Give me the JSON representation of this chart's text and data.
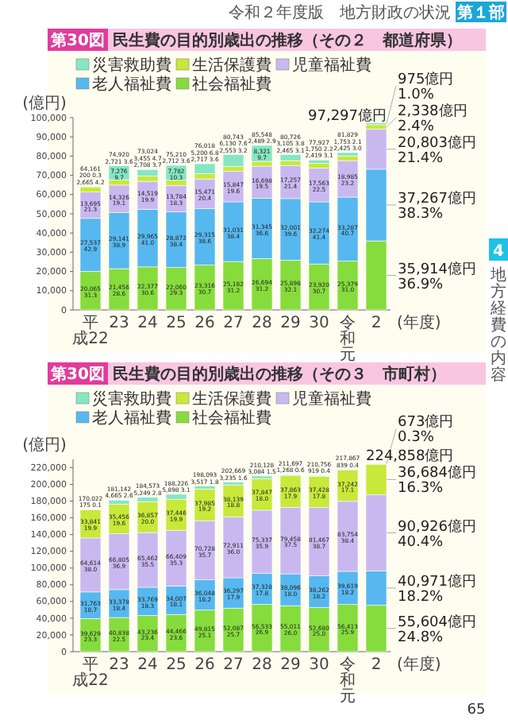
{
  "chart_data": [
    {
      "type": "bar",
      "stacked": true,
      "title": "民生費の目的別歳出の推移（その２　都道府県）",
      "ylabel": "(億円)",
      "xlabel": "(年度)",
      "legend": "top left",
      "annotations": [
        "第30図",
        "令和２年度版　地方財政の状況",
        "第１部",
        "4",
        "地方経費の内容"
      ],
      "categories": [
        "平成22",
        "23",
        "24",
        "25",
        "26",
        "27",
        "28",
        "29",
        "30",
        "令和元",
        "2"
      ],
      "ylim": [
        0,
        100000
      ],
      "yticks": [
        {
          "value": 0,
          "label": "0"
        },
        {
          "value": 10000,
          "label": "10,000"
        },
        {
          "value": 20000,
          "label": "20,000"
        },
        {
          "value": 30000,
          "label": "30,000"
        },
        {
          "value": 40000,
          "label": "40,000"
        },
        {
          "value": 50000,
          "label": "50,000"
        },
        {
          "value": 60000,
          "label": "60,000"
        },
        {
          "value": 70000,
          "label": "70,000"
        },
        {
          "value": 80000,
          "label": "80,000"
        },
        {
          "value": 90000,
          "label": "90,000"
        },
        {
          "value": 100000,
          "label": "100,000"
        }
      ],
      "totals": [
        "64,161",
        "74,920",
        "73,024",
        "75,210",
        "76,018",
        "80,743",
        "85,548",
        "80,726",
        "77,927",
        "81,829",
        "97,297億円"
      ],
      "series": [
        {
          "name": "社会福祉費",
          "color": "#86dc3c",
          "values": [
            20065,
            21456,
            22377,
            22060,
            23316,
            25182,
            26694,
            25898,
            23920,
            25379,
            35914
          ],
          "value_labels": [
            "20,065\n31.3",
            "21,456\n28.6",
            "22,377\n30.6",
            "22,060\n29.3",
            "23,316\n30.7",
            "25,182\n31.2",
            "26,694\n31.2",
            "25,898\n32.1",
            "23,920\n30.7",
            "25,379\n31.0",
            "35,914億円\n36.9%"
          ]
        },
        {
          "name": "老人福祉費",
          "color": "#56b8ef",
          "values": [
            27537,
            29141,
            29965,
            28872,
            29315,
            31031,
            31345,
            32001,
            32274,
            33287,
            37267
          ],
          "value_labels": [
            "27,537\n42.9",
            "29,141\n38.9",
            "29,965\n41.0",
            "28,872\n38.4",
            "29,315\n38.6",
            "31,031\n38.4",
            "31,345\n36.6",
            "32,001\n39.6",
            "32,274\n41.4",
            "33,287\n40.7",
            "37,267億円\n38.3%"
          ]
        },
        {
          "name": "児童福祉費",
          "color": "#c9b8f0",
          "values": [
            13695,
            14326,
            14519,
            13784,
            15471,
            15847,
            16698,
            17257,
            17563,
            18985,
            20803
          ],
          "value_labels": [
            "13,695\n21.3",
            "14,326\n19.1",
            "14,519\n19.9",
            "13,784\n18.3",
            "15,471\n20.4",
            "15,847\n19.6",
            "16,698\n19.5",
            "17,257\n21.4",
            "17,563\n22.5",
            "18,985\n23.2",
            "20,803億円\n21.4%"
          ]
        },
        {
          "name": "生活保護費",
          "color": "#c8e83a",
          "values": [
            2665,
            2721,
            2708,
            2712,
            2717,
            2553,
            2489,
            2465,
            2419,
            2425,
            2338
          ],
          "value_labels": [
            "2,665\n4.2",
            "2,721\n3.6",
            "2,708\n3.7",
            "2,712\n3.6",
            "2,717\n3.6",
            "2,553\n3.2",
            "2,489\n2.9",
            "2,465\n3.1",
            "2,419\n3.1",
            "2,425\n3.0",
            "2,338億円\n2.4%"
          ]
        },
        {
          "name": "災害救助費",
          "color": "#86e6c4",
          "values": [
            200,
            7276,
            3455,
            7782,
            5200,
            6130,
            8321,
            3105,
            1750,
            1753,
            975
          ],
          "value_labels": [
            "200\n0.3",
            "7,276\n9.7",
            "3,455\n4.7",
            "7,782\n10.3",
            "5,200\n6.8",
            "6,130\n7.6",
            "8,321\n9.7",
            "3,105\n3.8",
            "1,750\n2.2",
            "1,753\n2.1",
            "975億円\n1.0%"
          ]
        }
      ]
    },
    {
      "type": "bar",
      "stacked": true,
      "title": "民生費の目的別歳出の推移（その３　市町村）",
      "ylabel": "(億円)",
      "xlabel": "(年度)",
      "legend": "top left",
      "annotations": [
        "第30図",
        "65"
      ],
      "categories": [
        "平成22",
        "23",
        "24",
        "25",
        "26",
        "27",
        "28",
        "29",
        "30",
        "令和元",
        "2"
      ],
      "ylim": [
        0,
        230000
      ],
      "yticks": [
        {
          "value": 0,
          "label": "0"
        },
        {
          "value": 20000,
          "label": "20,000"
        },
        {
          "value": 40000,
          "label": "40,000"
        },
        {
          "value": 60000,
          "label": "60,000"
        },
        {
          "value": 80000,
          "label": "80,000"
        },
        {
          "value": 100000,
          "label": "100,000"
        },
        {
          "value": 120000,
          "label": "120,000"
        },
        {
          "value": 140000,
          "label": "140,000"
        },
        {
          "value": 160000,
          "label": "160,000"
        },
        {
          "value": 180000,
          "label": "180,000"
        },
        {
          "value": 200000,
          "label": "200,000"
        },
        {
          "value": 220000,
          "label": "220,000"
        }
      ],
      "totals": [
        "170,022",
        "181,142",
        "184,573",
        "188,226",
        "198,093",
        "202,669",
        "210,128",
        "211,697",
        "210,756",
        "217,867",
        "224,858億円"
      ],
      "series": [
        {
          "name": "社会福祉費",
          "color": "#86dc3c",
          "values": [
            39629,
            40838,
            43236,
            44466,
            49815,
            52087,
            56533,
            55011,
            52680,
            56413,
            55604
          ],
          "value_labels": [
            "39,629\n23.3",
            "40,838\n22.5",
            "43,236\n23.4",
            "44,466\n23.6",
            "49,815\n25.1",
            "52,087\n25.7",
            "56,533\n26.9",
            "55,011\n26.0",
            "52,680\n25.0",
            "56,413\n25.9",
            "55,604億円\n24.8%"
          ]
        },
        {
          "name": "老人福祉費",
          "color": "#56b8ef",
          "values": [
            31763,
            33378,
            33769,
            34007,
            36048,
            36297,
            37328,
            38096,
            38262,
            39619,
            40971
          ],
          "value_labels": [
            "31,763\n18.7",
            "33,378\n18.4",
            "33,769\n18.3",
            "34,007\n18.1",
            "36,048\n18.2",
            "36,297\n17.9",
            "37,328\n17.8",
            "38,096\n18.0",
            "38,262\n18.2",
            "39,619\n18.2",
            "40,971億円\n18.2%"
          ]
        },
        {
          "name": "児童福祉費",
          "color": "#c9b8f0",
          "values": [
            64614,
            66805,
            65462,
            66409,
            70728,
            72911,
            75337,
            79458,
            81467,
            83754,
            90926
          ],
          "value_labels": [
            "64,614\n38.0",
            "66,805\n36.9",
            "65,462\n35.5",
            "66,409\n35.3",
            "70,728\n35.7",
            "72,911\n36.0",
            "75,337\n35.9",
            "79,458\n37.5",
            "81,467\n38.7",
            "83,754\n38.4",
            "90,926億円\n40.4%"
          ]
        },
        {
          "name": "生活保護費",
          "color": "#c8e83a",
          "values": [
            33841,
            35456,
            36857,
            37446,
            37985,
            38139,
            37847,
            37863,
            37428,
            37242,
            36684
          ],
          "value_labels": [
            "33,841\n19.9",
            "35,456\n19.6",
            "36,857\n20.0",
            "37,446\n19.9",
            "37,985\n19.2",
            "38,139\n18.8",
            "37,847\n18.0",
            "37,863\n17.9",
            "37,428\n17.8",
            "37,242\n17.1",
            "36,684億円\n16.3%"
          ]
        },
        {
          "name": "災害救助費",
          "color": "#86e6c4",
          "values": [
            175,
            4665,
            5249,
            5898,
            3517,
            3235,
            3084,
            1268,
            919,
            839,
            673
          ],
          "value_labels": [
            "175\n0.1",
            "4,665\n2.6",
            "5,249\n2.8",
            "5,898\n3.1",
            "3,517\n1.8",
            "3,235\n1.6",
            "3,084\n1.5",
            "1,268\n0.6",
            "919\n0.4",
            "839\n0.4",
            "673億円\n0.3%"
          ]
        }
      ]
    }
  ]
}
